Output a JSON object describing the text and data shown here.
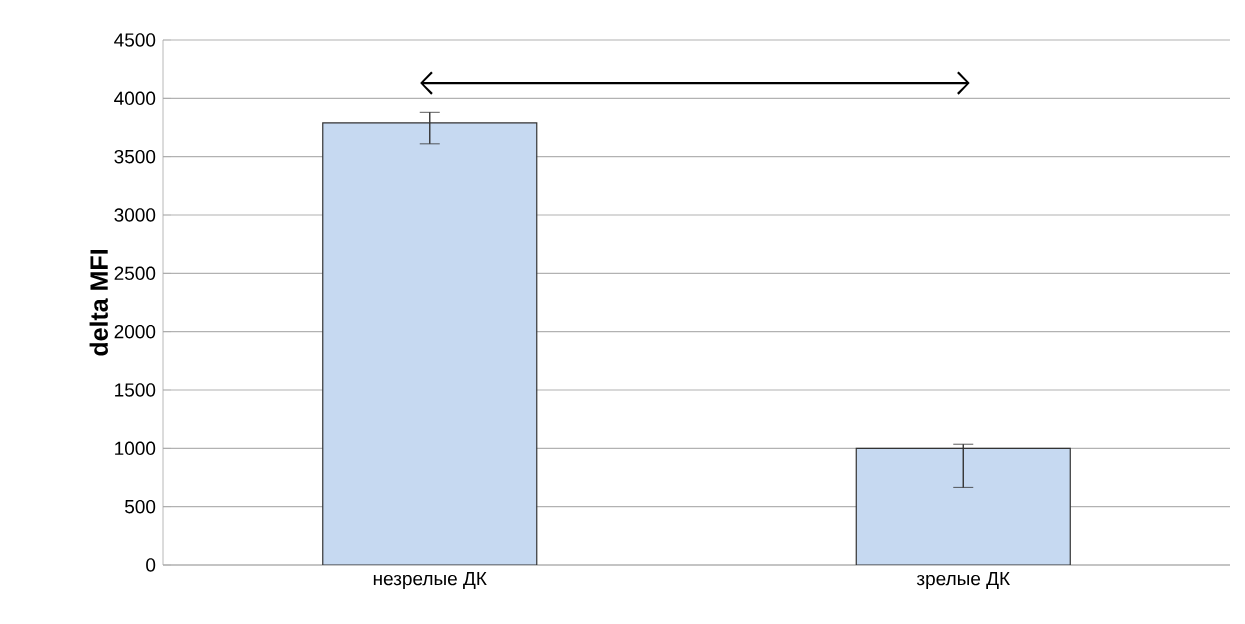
{
  "chart_data": {
    "type": "bar",
    "ylabel": "delta MFI",
    "categories": [
      "незрелые ДК",
      "зрелые ДК"
    ],
    "values": [
      3790,
      1000
    ],
    "errors": [
      [
        3610,
        3880
      ],
      [
        665,
        1035
      ]
    ],
    "color": "#c6d9f1",
    "ylim": [
      0,
      4500
    ],
    "yticks": [
      0,
      500,
      1000,
      1500,
      2000,
      2500,
      3000,
      3500,
      4000,
      4500
    ],
    "grid": "y"
  }
}
